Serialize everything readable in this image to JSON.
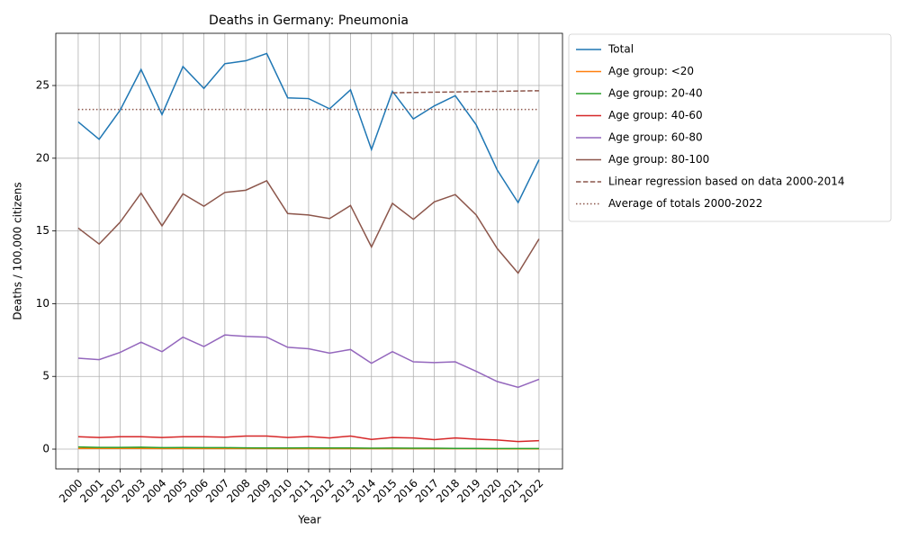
{
  "chart_data": {
    "type": "line",
    "title": "Deaths in Germany: Pneumonia",
    "x_label": "Year",
    "y_label": "Deaths / 100,000 citizens",
    "x": [
      2000,
      2001,
      2002,
      2003,
      2004,
      2005,
      2006,
      2007,
      2008,
      2009,
      2010,
      2011,
      2012,
      2013,
      2014,
      2015,
      2016,
      2017,
      2018,
      2019,
      2020,
      2021,
      2022
    ],
    "xlim": [
      1998.93,
      2023.12
    ],
    "xticks": [
      2000,
      2001,
      2002,
      2003,
      2004,
      2005,
      2006,
      2007,
      2008,
      2009,
      2010,
      2011,
      2012,
      2013,
      2014,
      2015,
      2016,
      2017,
      2018,
      2019,
      2020,
      2021,
      2022
    ],
    "ylim": [
      -1.36,
      28.59
    ],
    "yticks": [
      0,
      5,
      10,
      15,
      20,
      25
    ],
    "grid": true,
    "legend": "outside-upper-right",
    "series": [
      {
        "name": "Total",
        "color": "#1f77b4",
        "linestyle": "solid",
        "values": [
          22.5,
          21.3,
          23.3,
          26.1,
          23.0,
          26.3,
          24.8,
          26.5,
          26.7,
          27.2,
          24.15,
          24.1,
          23.4,
          24.7,
          20.6,
          24.6,
          22.7,
          23.6,
          24.3,
          22.3,
          19.2,
          16.95,
          19.9
        ]
      },
      {
        "name": "Age group: <20",
        "color": "#ff7f0e",
        "linestyle": "solid",
        "values": [
          0.05,
          0.05,
          0.05,
          0.05,
          0.04,
          0.04,
          0.04,
          0.04,
          0.04,
          0.04,
          0.03,
          0.03,
          0.03,
          0.03,
          0.03,
          0.03,
          0.03,
          0.03,
          0.03,
          0.03,
          0.02,
          0.02,
          0.02
        ]
      },
      {
        "name": "Age group: 20-40",
        "color": "#2ca02c",
        "linestyle": "solid",
        "values": [
          0.15,
          0.12,
          0.12,
          0.13,
          0.1,
          0.11,
          0.1,
          0.1,
          0.09,
          0.08,
          0.08,
          0.09,
          0.08,
          0.08,
          0.06,
          0.07,
          0.06,
          0.06,
          0.05,
          0.05,
          0.04,
          0.04,
          0.04
        ]
      },
      {
        "name": "Age group: 40-60",
        "color": "#d62728",
        "linestyle": "solid",
        "values": [
          0.85,
          0.8,
          0.85,
          0.85,
          0.8,
          0.85,
          0.85,
          0.82,
          0.9,
          0.9,
          0.8,
          0.87,
          0.77,
          0.9,
          0.67,
          0.8,
          0.77,
          0.65,
          0.77,
          0.68,
          0.63,
          0.52,
          0.58
        ]
      },
      {
        "name": "Age group: 60-80",
        "color": "#9467bd",
        "linestyle": "solid",
        "values": [
          6.25,
          6.15,
          6.65,
          7.35,
          6.7,
          7.7,
          7.05,
          7.85,
          7.75,
          7.7,
          7.0,
          6.9,
          6.6,
          6.85,
          5.9,
          6.7,
          6.0,
          5.95,
          6.0,
          5.35,
          4.65,
          4.25,
          4.8
        ]
      },
      {
        "name": "Age group: 80-100",
        "color": "#8c564b",
        "linestyle": "solid",
        "values": [
          15.2,
          14.1,
          15.6,
          17.6,
          15.35,
          17.55,
          16.7,
          17.65,
          17.8,
          18.45,
          16.2,
          16.1,
          15.85,
          16.75,
          13.9,
          16.9,
          15.8,
          17.0,
          17.5,
          16.1,
          13.8,
          12.1,
          14.45
        ]
      },
      {
        "name": "Linear regression based on data 2000-2014",
        "color": "#8c564b",
        "linestyle": "dashed",
        "values": [
          null,
          null,
          null,
          null,
          null,
          null,
          null,
          null,
          null,
          null,
          null,
          null,
          null,
          null,
          null,
          24.5,
          24.52,
          24.54,
          24.56,
          24.58,
          24.6,
          24.62,
          24.64
        ]
      },
      {
        "name": "Average of totals 2000-2022",
        "color": "#8c564b",
        "linestyle": "dotted",
        "values": [
          23.35,
          23.35,
          23.35,
          23.35,
          23.35,
          23.35,
          23.35,
          23.35,
          23.35,
          23.35,
          23.35,
          23.35,
          23.35,
          23.35,
          23.35,
          23.35,
          23.35,
          23.35,
          23.35,
          23.35,
          23.35,
          23.35,
          23.35
        ]
      }
    ]
  }
}
